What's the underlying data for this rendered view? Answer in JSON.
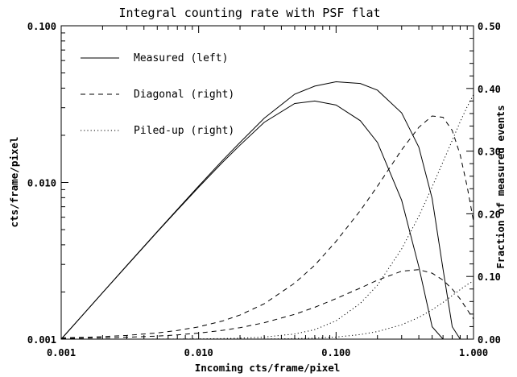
{
  "chart_data": {
    "type": "line",
    "title": "Integral counting rate with PSF flat",
    "xlabel": "Incoming cts/frame/pixel",
    "ylabel_left": "cts/frame/pixel",
    "ylabel_right": "Fraction of measured events",
    "x_scale": "log",
    "y_left_scale": "log",
    "y_right_scale": "linear",
    "xlim": [
      0.001,
      1.0
    ],
    "ylim_left": [
      0.001,
      0.1
    ],
    "ylim_right": [
      0.0,
      0.5
    ],
    "x_ticks": [
      "0.001",
      "0.010",
      "0.100",
      "1.000"
    ],
    "y_left_ticks": [
      "0.001",
      "0.010",
      "0.100"
    ],
    "y_right_ticks": [
      "0.00",
      "0.10",
      "0.20",
      "0.30",
      "0.40",
      "0.50"
    ],
    "grid": false,
    "legend_position": "top-left",
    "legend": [
      {
        "label": "Measured (left)",
        "style": "solid"
      },
      {
        "label": "Diagonal (right)",
        "style": "dashed"
      },
      {
        "label": "Piled-up (right)",
        "style": "dotted"
      }
    ],
    "x": [
      0.001,
      0.0015,
      0.002,
      0.003,
      0.005,
      0.007,
      0.01,
      0.015,
      0.02,
      0.03,
      0.05,
      0.07,
      0.1,
      0.15,
      0.2,
      0.3,
      0.4,
      0.5,
      0.6,
      0.7,
      0.8,
      0.9,
      1.0
    ],
    "series": [
      {
        "axis": "left",
        "style": "solid",
        "values": [
          0.000996,
          0.00149,
          0.00198,
          0.00295,
          0.00486,
          0.00673,
          0.00948,
          0.0139,
          0.018,
          0.0257,
          0.0366,
          0.0412,
          0.0439,
          0.0428,
          0.0388,
          0.0278,
          0.0168,
          0.0079,
          0.0028,
          0.0012,
          0.001,
          0.001,
          0.001
        ]
      },
      {
        "axis": "left",
        "style": "solid",
        "values": [
          0.000995,
          0.00149,
          0.00198,
          0.00294,
          0.00483,
          0.00666,
          0.00932,
          0.0135,
          0.0173,
          0.0242,
          0.0319,
          0.0331,
          0.0312,
          0.0248,
          0.018,
          0.0077,
          0.0029,
          0.0012,
          0.001,
          0.001,
          0.001,
          0.001,
          0.001
        ]
      },
      {
        "axis": "right",
        "style": "dashed",
        "values": [
          0.002,
          0.003,
          0.004,
          0.006,
          0.0099,
          0.0138,
          0.0196,
          0.0291,
          0.0385,
          0.0564,
          0.0894,
          0.118,
          0.156,
          0.205,
          0.244,
          0.302,
          0.338,
          0.356,
          0.354,
          0.333,
          0.294,
          0.243,
          0.188
        ]
      },
      {
        "axis": "right",
        "style": "dashed",
        "values": [
          0.001,
          0.0015,
          0.002,
          0.003,
          0.0049,
          0.0068,
          0.0096,
          0.0141,
          0.0183,
          0.0262,
          0.0396,
          0.0508,
          0.0647,
          0.0815,
          0.0941,
          0.1084,
          0.1109,
          0.1052,
          0.0942,
          0.0799,
          0.064,
          0.047,
          0.032
        ]
      },
      {
        "axis": "right",
        "style": "dotted",
        "values": [
          0.0,
          0.0,
          0.0,
          0.0,
          0.0001,
          0.0002,
          0.0004,
          0.0009,
          0.0015,
          0.0033,
          0.0082,
          0.0152,
          0.0292,
          0.057,
          0.086,
          0.144,
          0.196,
          0.243,
          0.283,
          0.317,
          0.347,
          0.371,
          0.39
        ]
      },
      {
        "axis": "right",
        "style": "dotted",
        "values": [
          0.0,
          0.0,
          0.0,
          0.0,
          0.0,
          0.0,
          0.0,
          0.0,
          0.0001,
          0.0003,
          0.0008,
          0.0016,
          0.0033,
          0.0073,
          0.0121,
          0.0229,
          0.0347,
          0.0469,
          0.0586,
          0.0695,
          0.079,
          0.087,
          0.093
        ]
      }
    ]
  }
}
